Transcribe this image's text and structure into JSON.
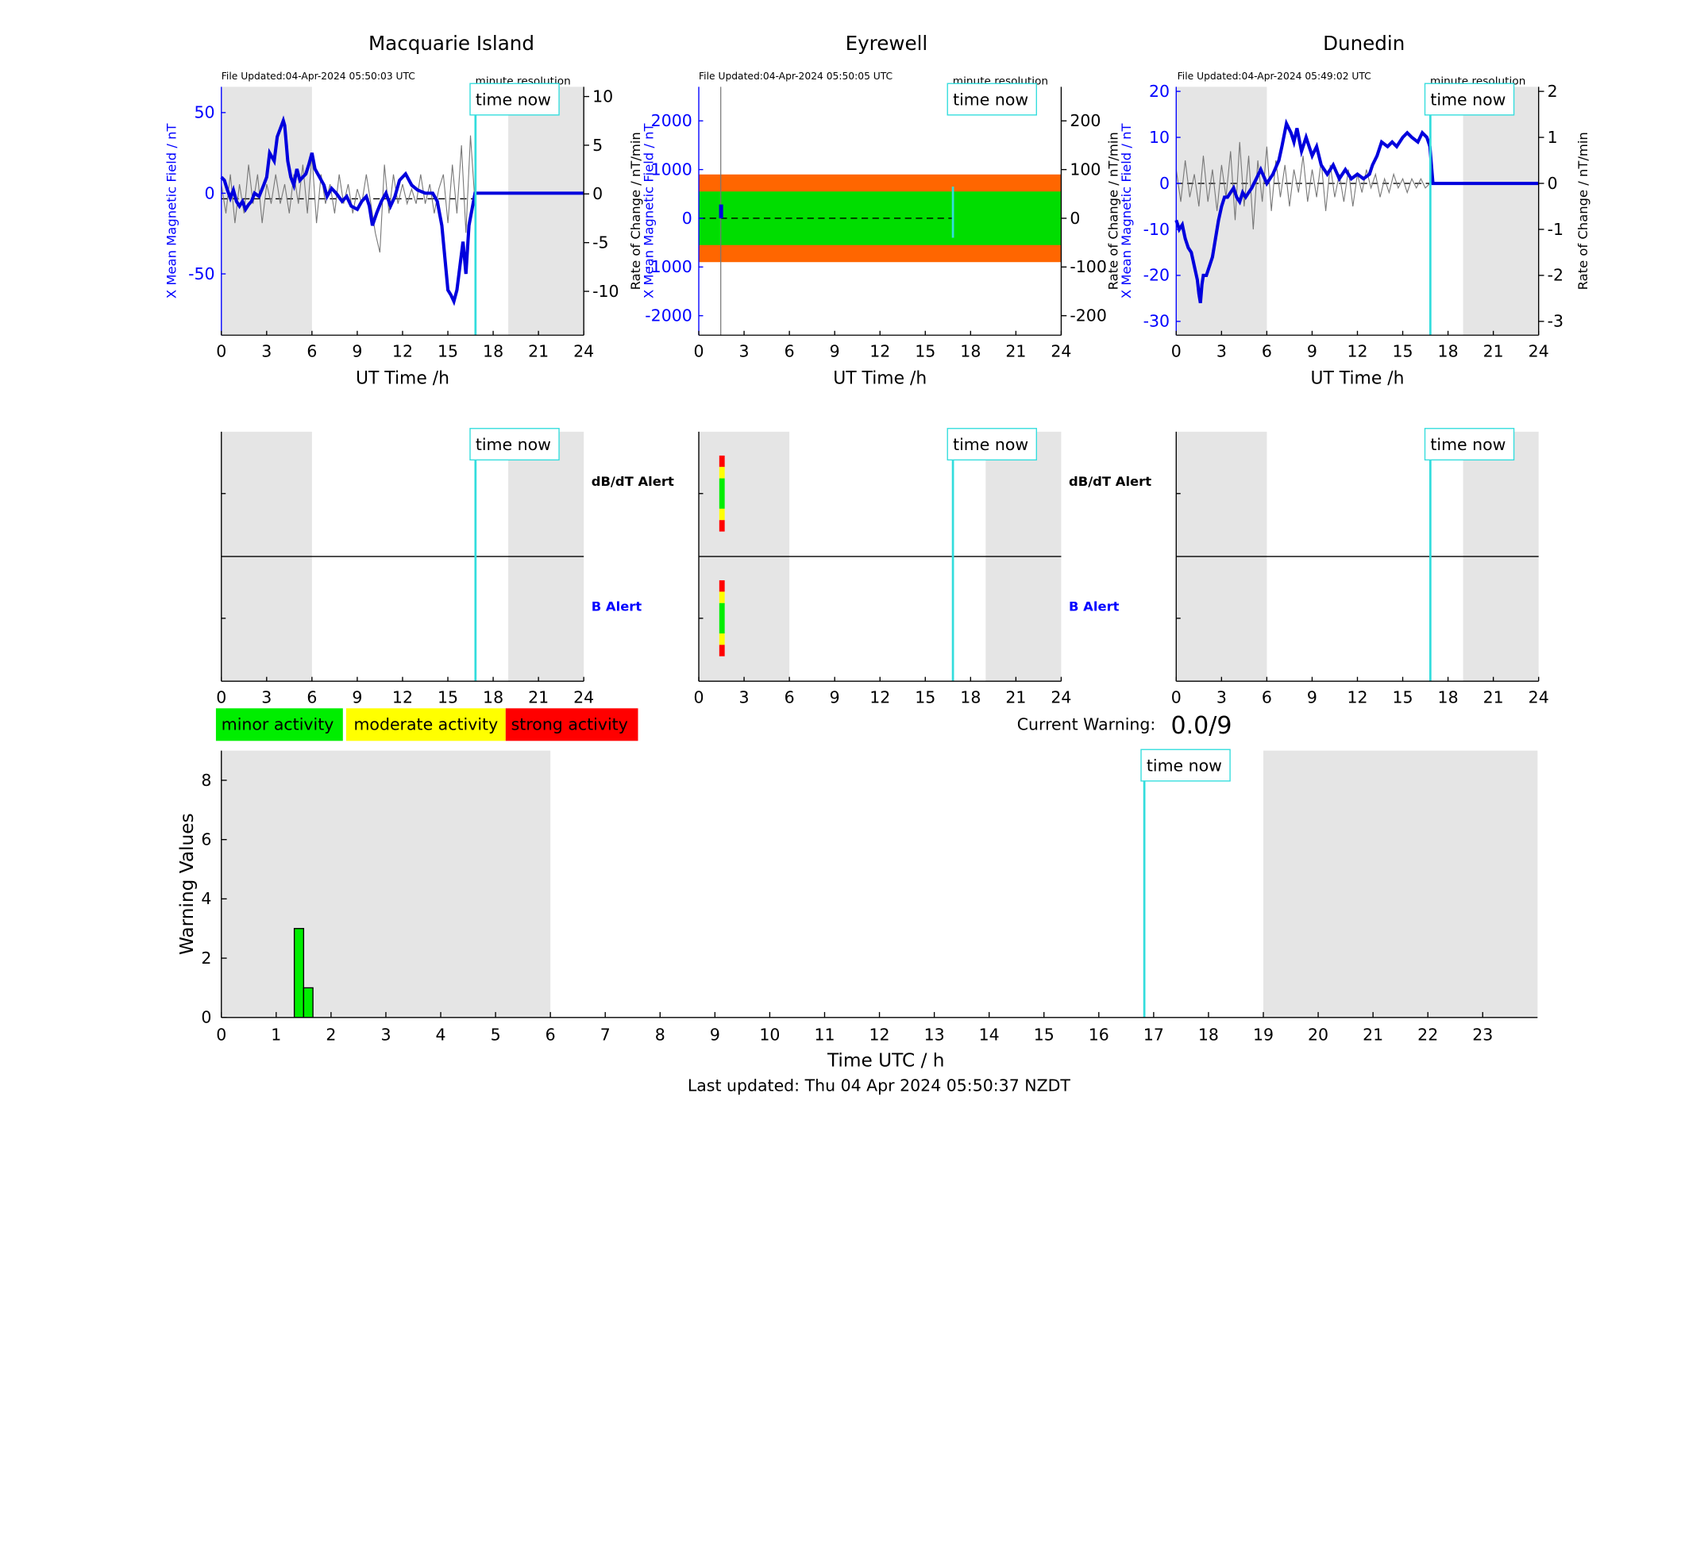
{
  "stations": [
    {
      "name": "Macquarie Island",
      "file_updated": "File Updated:04-Apr-2024 05:50:03 UTC",
      "resolution_label": "minute resolution",
      "left_ylabel": "X Mean Magnetic Field / nT",
      "right_ylabel": "Rate of Change / nT/min",
      "xlabel": "UT Time /h",
      "left_ylim": [
        -88,
        66
      ],
      "left_ticks": [
        -50,
        0,
        50
      ],
      "right_ylim": [
        -14.5,
        11
      ],
      "right_ticks": [
        -10,
        -5,
        0,
        5,
        10
      ],
      "right_baseline": -0.5,
      "shade_left_y": null,
      "band": null,
      "now_line_style": "full",
      "now_line_short": null,
      "field_series": {
        "x": [
          0,
          0.2,
          0.4,
          0.6,
          0.8,
          1.0,
          1.2,
          1.4,
          1.6,
          1.8,
          2.0,
          2.2,
          2.5,
          2.8,
          3.0,
          3.2,
          3.5,
          3.7,
          3.9,
          4.1,
          4.2,
          4.4,
          4.6,
          4.8,
          5.0,
          5.2,
          5.4,
          5.6,
          5.8,
          6.0,
          6.2,
          6.5,
          6.8,
          7.0,
          7.3,
          7.6,
          8.0,
          8.3,
          8.6,
          9.0,
          9.3,
          9.6,
          9.8,
          10.0,
          10.3,
          10.6,
          10.9,
          11.2,
          11.5,
          11.8,
          12.2,
          12.6,
          13.0,
          13.5,
          14.0,
          14.3,
          14.6,
          14.8,
          15.0,
          15.2,
          15.4,
          15.6,
          15.8,
          16.0,
          16.2,
          16.4,
          16.6,
          16.8,
          17.0,
          24
        ],
        "y": [
          10,
          8,
          2,
          -3,
          2,
          -5,
          -8,
          -5,
          -10,
          -7,
          -5,
          0,
          -2,
          5,
          10,
          25,
          20,
          35,
          40,
          45,
          42,
          20,
          10,
          5,
          15,
          8,
          10,
          12,
          18,
          25,
          15,
          10,
          5,
          -2,
          3,
          0,
          -5,
          -2,
          -8,
          -10,
          -5,
          -2,
          -8,
          -20,
          -12,
          -5,
          0,
          -8,
          -2,
          8,
          12,
          5,
          2,
          0,
          0,
          -5,
          -20,
          -40,
          -60,
          -63,
          -67,
          -60,
          -45,
          -30,
          -50,
          -20,
          -10,
          0,
          0,
          0
        ]
      },
      "rate_series": {
        "x": [
          0,
          0.3,
          0.6,
          0.9,
          1.2,
          1.5,
          1.8,
          2.1,
          2.4,
          2.7,
          3.0,
          3.3,
          3.6,
          3.9,
          4.2,
          4.5,
          4.8,
          5.1,
          5.4,
          5.7,
          6.0,
          6.3,
          6.6,
          6.9,
          7.2,
          7.5,
          7.8,
          8.1,
          8.4,
          8.7,
          9.0,
          9.3,
          9.6,
          9.9,
          10.2,
          10.5,
          10.8,
          11.1,
          11.4,
          11.7,
          12.0,
          12.3,
          12.6,
          12.9,
          13.2,
          13.5,
          13.8,
          14.1,
          14.4,
          14.7,
          15.0,
          15.3,
          15.6,
          15.9,
          16.2,
          16.5,
          16.8
        ],
        "y": [
          1,
          -2,
          2,
          -3,
          1,
          -2,
          3,
          -1,
          2,
          -3,
          1,
          -1,
          2,
          -1,
          1,
          -2,
          2,
          -1,
          3,
          -2,
          4,
          -3,
          2,
          -1,
          1,
          -2,
          2,
          -1,
          1,
          -2,
          0.5,
          -1,
          2,
          -1,
          -4,
          -6,
          3,
          -2,
          2,
          -1,
          1,
          -1,
          0.5,
          -1,
          2,
          -1,
          1,
          -2,
          0.5,
          2,
          -3,
          3,
          -2,
          5,
          -4,
          6,
          -1
        ]
      },
      "alerts": []
    },
    {
      "name": "Eyrewell",
      "file_updated": "File Updated:04-Apr-2024 05:50:05 UTC",
      "resolution_label": "minute resolution",
      "left_ylabel": "X Mean Magnetic Field / nT",
      "right_ylabel": "Rate of Change / nT/min",
      "xlabel": "UT Time /h",
      "left_ylim": [
        -2400,
        2700
      ],
      "left_ticks": [
        -2000,
        -1000,
        0,
        1000,
        2000
      ],
      "right_ylim": [
        -240,
        270
      ],
      "right_ticks": [
        -200,
        -100,
        0,
        100,
        200
      ],
      "right_baseline": 0,
      "shade_left_y": [
        -700,
        700
      ],
      "band": {
        "y": [
          -90,
          90
        ],
        "color": "#ff6600",
        "inner_color": "#00dd00",
        "inner_y": [
          -55,
          55
        ]
      },
      "now_line_style": "short",
      "now_line_short": [
        -400,
        650
      ],
      "field_series": {
        "x": [
          1.45,
          1.45,
          1.5,
          1.5
        ],
        "y": [
          0,
          250,
          250,
          0
        ]
      },
      "rate_series": {
        "x": [
          1.45,
          1.45,
          1.46,
          1.46
        ],
        "y": [
          270,
          -240,
          -240,
          270
        ]
      },
      "alerts": [
        1.5
      ]
    },
    {
      "name": "Dunedin",
      "file_updated": "File Updated:04-Apr-2024 05:49:02 UTC",
      "resolution_label": "minute resolution",
      "left_ylabel": "X Mean Magnetic Field / nT",
      "right_ylabel": "Rate of Change / nT/min",
      "xlabel": "UT Time /h",
      "left_ylim": [
        -33,
        21
      ],
      "left_ticks": [
        -30,
        -20,
        -10,
        0,
        10,
        20
      ],
      "right_ylim": [
        -3.3,
        2.1
      ],
      "right_ticks": [
        -3,
        -2,
        -1,
        0,
        1,
        2
      ],
      "right_baseline": 0,
      "shade_left_y": null,
      "band": null,
      "now_line_style": "full",
      "now_line_short": null,
      "field_series": {
        "x": [
          0,
          0.2,
          0.4,
          0.6,
          0.8,
          1.0,
          1.2,
          1.4,
          1.5,
          1.6,
          1.7,
          1.8,
          2.0,
          2.2,
          2.4,
          2.6,
          2.8,
          3.0,
          3.2,
          3.4,
          3.6,
          3.8,
          4.0,
          4.2,
          4.4,
          4.6,
          4.8,
          5.0,
          5.3,
          5.6,
          6.0,
          6.4,
          6.8,
          7.0,
          7.3,
          7.6,
          7.8,
          8.0,
          8.3,
          8.6,
          9.0,
          9.3,
          9.6,
          10.0,
          10.4,
          10.8,
          11.2,
          11.6,
          12.0,
          12.4,
          12.8,
          13.0,
          13.3,
          13.6,
          14.0,
          14.3,
          14.6,
          15.0,
          15.3,
          15.6,
          16.0,
          16.3,
          16.6,
          16.8,
          17.0,
          24
        ],
        "y": [
          -8,
          -10,
          -9,
          -12,
          -14,
          -15,
          -18,
          -21,
          -24,
          -26,
          -22,
          -20,
          -20,
          -18,
          -16,
          -12,
          -8,
          -5,
          -3,
          -3,
          -2,
          -1,
          -3,
          -4,
          -2,
          -3,
          -2,
          -1,
          1,
          3,
          0,
          2,
          5,
          8,
          13,
          11,
          9,
          12,
          7,
          10,
          6,
          8,
          4,
          2,
          4,
          1,
          3,
          1,
          2,
          1,
          2,
          4,
          6,
          9,
          8,
          9,
          8,
          10,
          11,
          10,
          9,
          11,
          10,
          8,
          0,
          0
        ]
      },
      "rate_series": {
        "x": [
          0,
          0.3,
          0.6,
          0.9,
          1.2,
          1.5,
          1.8,
          2.1,
          2.4,
          2.7,
          3.0,
          3.3,
          3.6,
          3.9,
          4.2,
          4.5,
          4.8,
          5.1,
          5.4,
          5.7,
          6.0,
          6.3,
          6.6,
          6.9,
          7.2,
          7.5,
          7.8,
          8.1,
          8.4,
          8.7,
          9.0,
          9.3,
          9.6,
          9.9,
          10.2,
          10.5,
          10.8,
          11.1,
          11.4,
          11.7,
          12.0,
          12.3,
          12.6,
          12.9,
          13.2,
          13.5,
          13.8,
          14.1,
          14.4,
          14.7,
          15.0,
          15.3,
          15.6,
          15.9,
          16.2,
          16.5,
          16.8
        ],
        "y": [
          0.3,
          -0.4,
          0.5,
          -0.3,
          0.2,
          -0.5,
          0.6,
          -0.4,
          0.3,
          -0.6,
          0.4,
          -0.3,
          0.7,
          -0.8,
          0.9,
          -0.5,
          0.6,
          -1.0,
          0.5,
          -0.4,
          0.8,
          -0.6,
          0.5,
          -0.3,
          0.4,
          -0.5,
          0.3,
          -0.2,
          0.6,
          -0.4,
          0.3,
          -0.3,
          0.5,
          -0.6,
          0.4,
          -0.3,
          0.2,
          -0.4,
          0.3,
          -0.5,
          0.2,
          -0.2,
          0.3,
          -0.1,
          0.2,
          -0.3,
          0.1,
          -0.2,
          0.2,
          -0.1,
          0.1,
          -0.2,
          0.1,
          -0.1,
          0.1,
          -0.1,
          0
        ]
      },
      "alerts": []
    }
  ],
  "common": {
    "x_ticks": [
      0,
      3,
      6,
      9,
      12,
      15,
      18,
      21,
      24
    ],
    "x_range": [
      0,
      24
    ],
    "shade_night": [
      [
        0,
        6
      ],
      [
        19,
        24
      ]
    ],
    "now_hour": 16.83,
    "time_now_label": "time now",
    "dbdt_alert_label": "dB/dT Alert",
    "b_alert_label": "B Alert"
  },
  "legend": {
    "minor": {
      "label": "minor activity",
      "color": "#00ee00"
    },
    "moderate": {
      "label": "moderate activity",
      "color": "#ffff00"
    },
    "strong": {
      "label": "strong activity",
      "color": "#ff0000"
    }
  },
  "current_warning": {
    "label": "Current Warning:",
    "value": "0.0/9"
  },
  "chart_data": {
    "type": "bar",
    "xlabel": "Time UTC / h",
    "ylabel": "Warning Values",
    "x_range": [
      0,
      24
    ],
    "x_ticks": [
      0,
      1,
      2,
      3,
      4,
      5,
      6,
      7,
      8,
      9,
      10,
      11,
      12,
      13,
      14,
      15,
      16,
      17,
      18,
      19,
      20,
      21,
      22,
      23
    ],
    "ylim": [
      0,
      9
    ],
    "y_ticks": [
      0,
      2,
      4,
      6,
      8
    ],
    "bars": [
      {
        "x_start": 1.33,
        "x_end": 1.5,
        "value": 3,
        "color": "#00ee00"
      },
      {
        "x_start": 1.5,
        "x_end": 1.67,
        "value": 1,
        "color": "#00ee00"
      }
    ],
    "shade": [
      [
        0,
        6
      ],
      [
        19,
        24
      ]
    ],
    "now_hour": 16.83
  },
  "footer": {
    "last_updated": "Last updated: Thu 04 Apr 2024 05:50:37 NZDT"
  }
}
